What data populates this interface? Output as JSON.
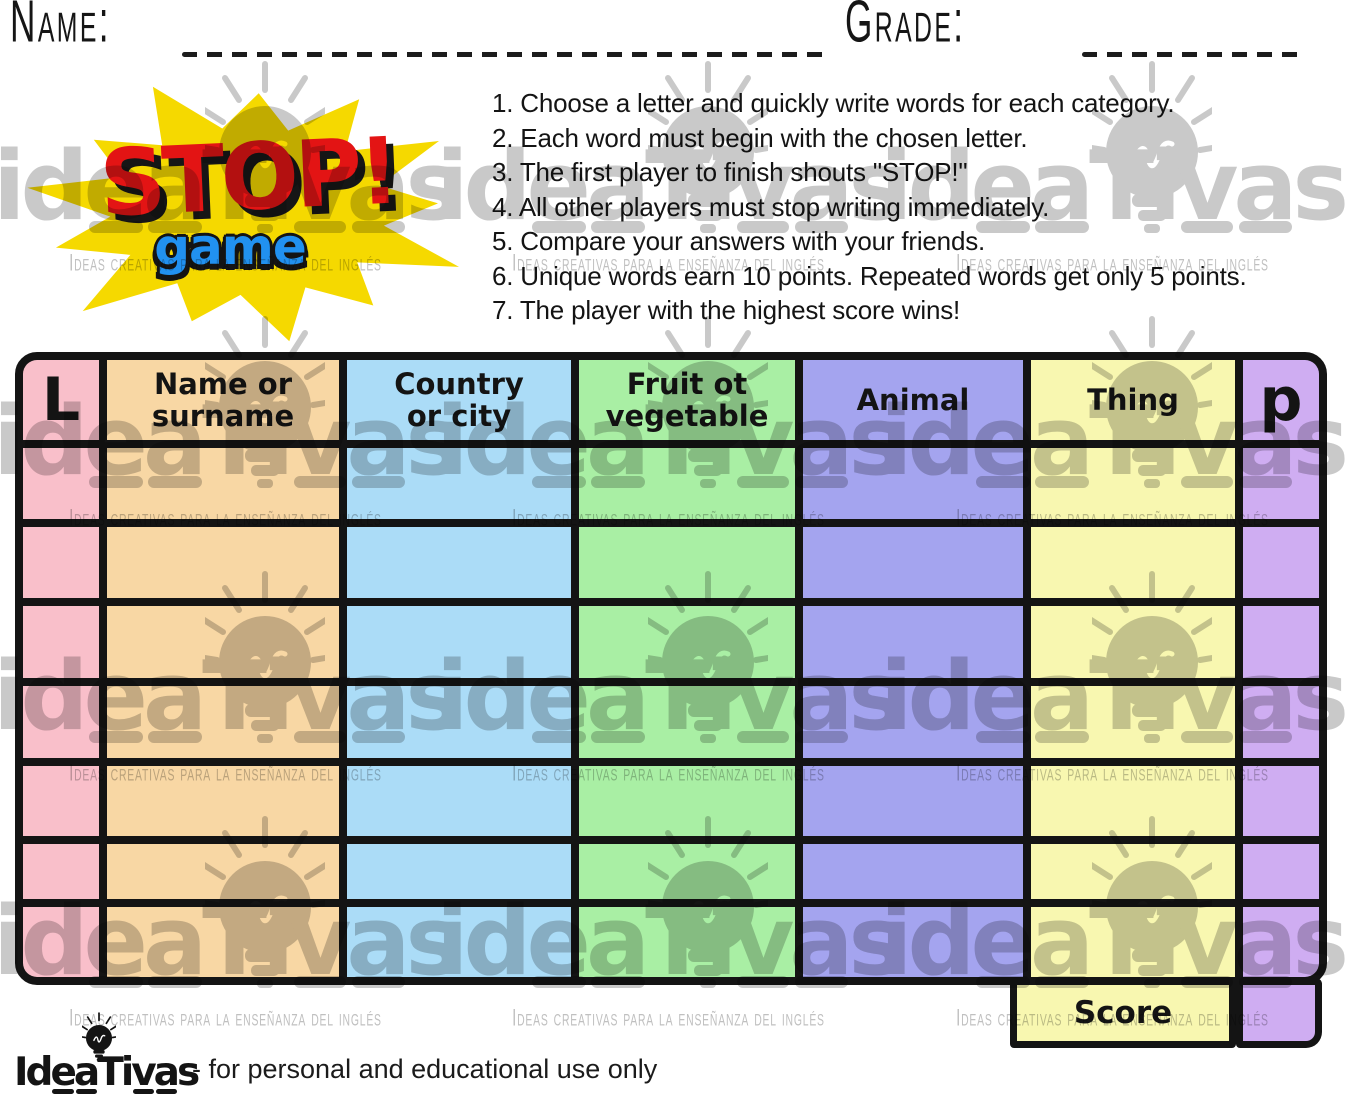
{
  "header": {
    "name_label": "Name:",
    "grade_label": "Grade:"
  },
  "burst": {
    "title": "STOP!",
    "subtitle": "game"
  },
  "instructions": [
    "1. Choose a letter and quickly write words for each category.",
    "2. Each word must begin with the chosen letter.",
    "3. The first player to finish shouts \"STOP!\"",
    "4. All other players must stop writing immediately.",
    "5. Compare your answers with your friends.",
    "6. Unique words earn 10 points. Repeated words get only 5 points.",
    "7. The player with the highest score wins!"
  ],
  "table": {
    "columns": [
      {
        "id": "letter",
        "label": "L",
        "color": "#f9bfca"
      },
      {
        "id": "name-or-surname",
        "label": "Name or\nsurname",
        "color": "#f8d7a4"
      },
      {
        "id": "country-or-city",
        "label": "Country\nor city",
        "color": "#abdcf7"
      },
      {
        "id": "fruit-or-vegetable",
        "label": "Fruit ot\nvegetable",
        "color": "#a9efa4"
      },
      {
        "id": "animal",
        "label": "Animal",
        "color": "#a4a4ef"
      },
      {
        "id": "thing",
        "label": "Thing",
        "color": "#f8f7b0"
      },
      {
        "id": "points",
        "label": "p",
        "color": "#cfadf2"
      }
    ],
    "data_rows": 7
  },
  "score": {
    "label": "Score"
  },
  "watermark": {
    "brand": "ideaTivas",
    "tagline": "Ideas creativas para la enseñanza del inglés"
  },
  "footer": {
    "brand": "IdeaTivas",
    "note": "- for personal and educational use only"
  },
  "colors": {
    "burst_yellow": "#f5d900",
    "stop_red": "#e31414",
    "game_blue": "#2191f0",
    "border_black": "#141414",
    "watermark_gray": "#c9c9c9",
    "watermark_tag_gray": "#c0c0c0"
  }
}
